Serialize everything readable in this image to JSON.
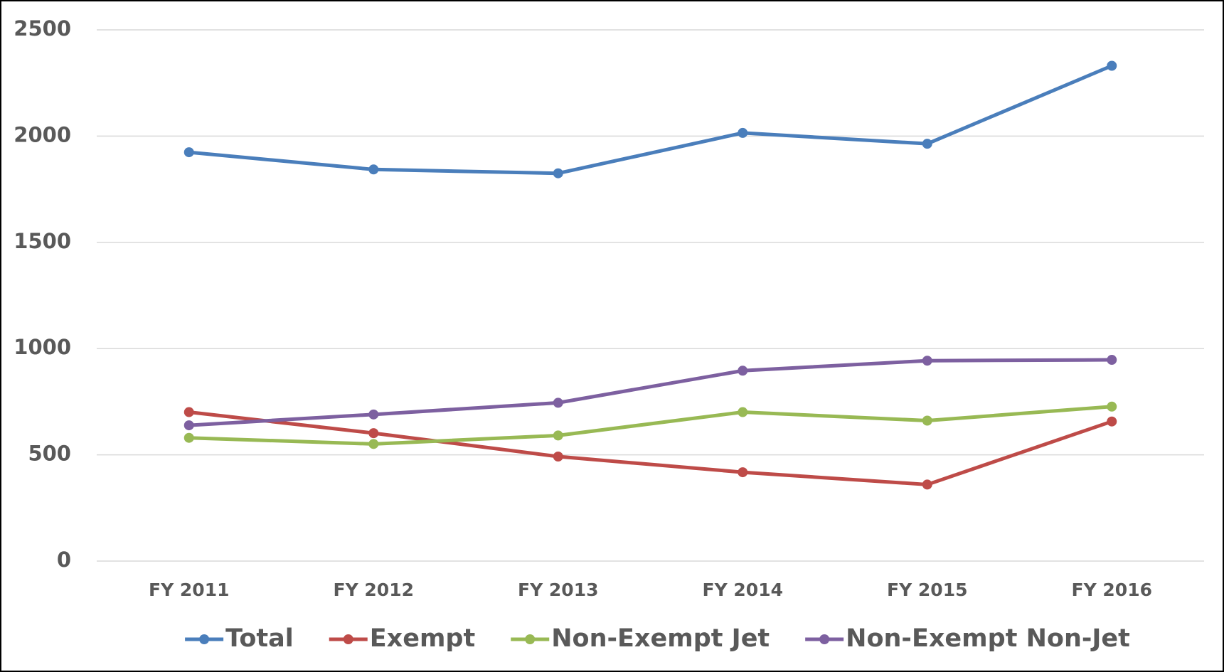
{
  "chart_data": {
    "type": "line",
    "categories": [
      "FY 2011",
      "FY 2012",
      "FY 2013",
      "FY 2014",
      "FY 2015",
      "FY 2016"
    ],
    "series": [
      {
        "name": "Total",
        "color": "#4a7ebb",
        "values": [
          1924,
          1843,
          1825,
          2015,
          1964,
          2331
        ]
      },
      {
        "name": "Exempt",
        "color": "#be4b48",
        "values": [
          701,
          602,
          492,
          418,
          360,
          657
        ]
      },
      {
        "name": "Non-Exempt Jet",
        "color": "#98b954",
        "values": [
          580,
          551,
          591,
          701,
          661,
          727
        ]
      },
      {
        "name": "Non-Exempt Non-Jet",
        "color": "#7d60a0",
        "values": [
          639,
          690,
          745,
          896,
          943,
          947
        ]
      }
    ],
    "ylim": [
      0,
      2500
    ],
    "yticks": [
      0,
      500,
      1000,
      1500,
      2000,
      2500
    ],
    "grid": true,
    "legend": "bottom"
  }
}
